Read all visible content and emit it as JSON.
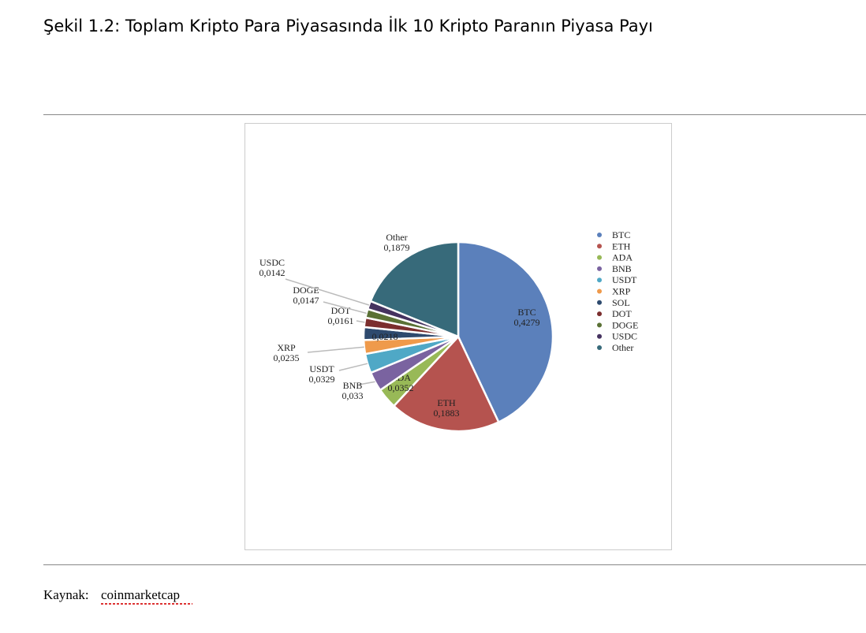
{
  "caption": "Şekil 1.2: Toplam Kripto Para Piyasasında İlk 10 Kripto Paranın Piyasa Payı",
  "chart_data": {
    "type": "pie",
    "categories": [
      "BTC",
      "ETH",
      "ADA",
      "BNB",
      "USDT",
      "XRP",
      "SOL",
      "DOT",
      "DOGE",
      "USDC",
      "Other"
    ],
    "values": [
      0.4279,
      0.1883,
      0.0352,
      0.033,
      0.0329,
      0.0235,
      0.0218,
      0.0161,
      0.0147,
      0.0142,
      0.1879
    ],
    "value_labels": [
      "0,4279",
      "0,1883",
      "0,0352",
      "0,033",
      "0,0329",
      "0,0235",
      "0,0218",
      "0,0161",
      "0,0147",
      "0,0142",
      "0,1879"
    ],
    "colors": [
      "#5b80bb",
      "#b5534f",
      "#98b957",
      "#7a63a0",
      "#4fa8c6",
      "#ef9a4b",
      "#2e4a6e",
      "#7b2e2e",
      "#5a7135",
      "#45325f",
      "#376a7a"
    ],
    "legend": "right"
  },
  "source": {
    "label": "Kaynak:",
    "text": "coinmarketcap"
  }
}
